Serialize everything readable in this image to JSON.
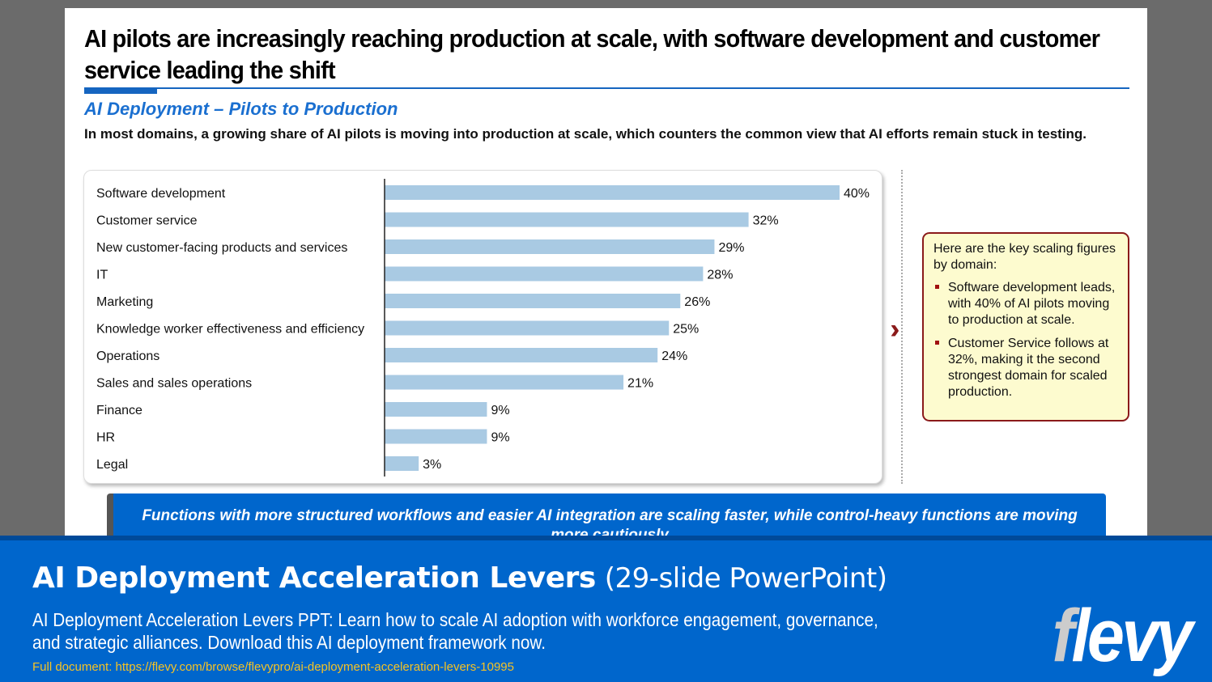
{
  "slide": {
    "title": "AI pilots are increasingly reaching production at scale, with software development and customer service leading the shift",
    "subtitle": "AI Deployment – Pilots to Production",
    "lead": "In most domains, a growing share of AI pilots is moving into production at scale, which counters the common view that AI efforts remain stuck in testing.",
    "callout": {
      "intro": "Here are the key scaling figures by domain:",
      "bullets": [
        "Software development leads, with 40% of AI pilots moving to production at scale.",
        "Customer Service follows at 32%, making it the second strongest domain for scaled production."
      ]
    },
    "takeaway": "Functions with more structured workflows and easier AI integration are scaling faster, while control-heavy functions are moving more cautiously"
  },
  "chart_data": {
    "type": "bar",
    "orientation": "horizontal",
    "categories": [
      "Software development",
      "Customer service",
      "New customer-facing products and services",
      "IT",
      "Marketing",
      "Knowledge worker effectiveness and efficiency",
      "Operations",
      "Sales and sales operations",
      "Finance",
      "HR",
      "Legal"
    ],
    "values": [
      40,
      32,
      29,
      28,
      26,
      25,
      24,
      21,
      9,
      9,
      3
    ],
    "value_labels": [
      "40%",
      "32%",
      "29%",
      "28%",
      "26%",
      "25%",
      "24%",
      "21%",
      "9%",
      "9%",
      "3%"
    ],
    "bar_color": "#a9cae3",
    "grid": false
  },
  "banner": {
    "title_bold": "AI Deployment Acceleration Levers",
    "title_rest": "(29-slide PowerPoint)",
    "description": "AI Deployment Acceleration Levers PPT: Learn how to scale AI adoption with workforce engagement, governance, and strategic alliances. Download this AI deployment framework now.",
    "link": "Full document: https://flevy.com/browse/flevypro/ai-deployment-acceleration-levers-10995",
    "logo": "flevy"
  }
}
